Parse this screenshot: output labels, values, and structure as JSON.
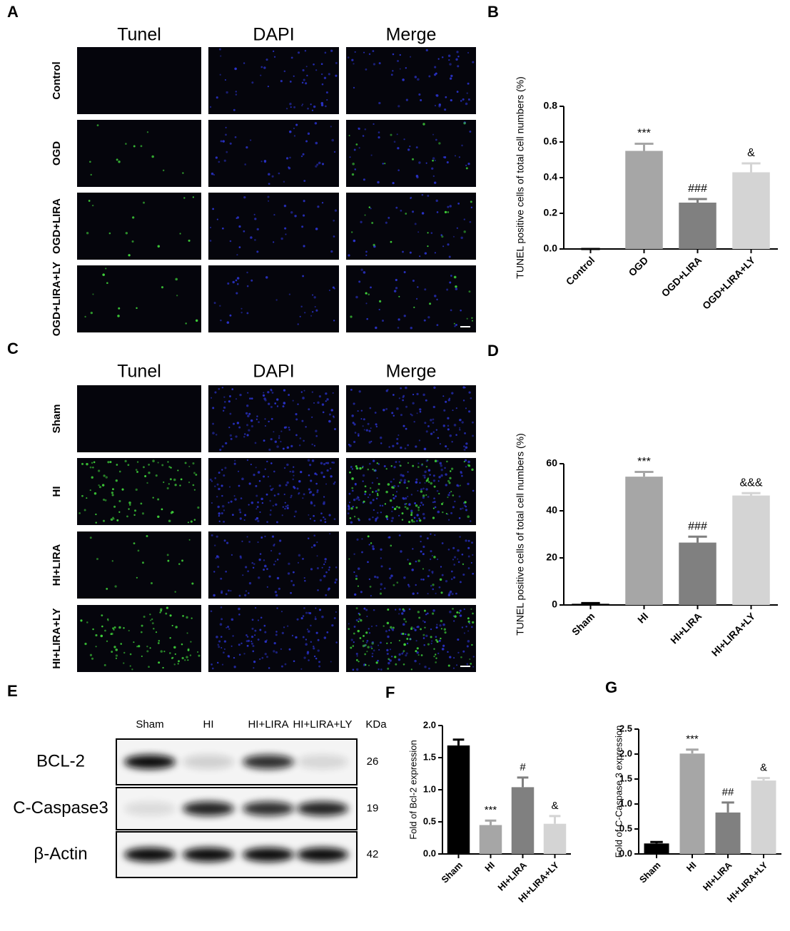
{
  "micrographs": [
    {
      "panel": "A",
      "columns": [
        "Tunel",
        "DAPI",
        "Merge"
      ],
      "rows": [
        "Control",
        "OGD",
        "OGD+LIRA",
        "OGD+LIRA+LY"
      ]
    },
    {
      "panel": "C",
      "columns": [
        "Tunel",
        "DAPI",
        "Merge"
      ],
      "rows": [
        "Sham",
        "HI",
        "HI+LIRA",
        "HI+LIRA+LY"
      ]
    }
  ],
  "western_blot": {
    "panel": "E",
    "lanes": [
      "Sham",
      "HI",
      "HI+LIRA",
      "HI+LIRA+LY"
    ],
    "unit": "KDa",
    "bands": [
      {
        "name": "BCL-2",
        "size": "26"
      },
      {
        "name": "C-Caspase3",
        "size": "19"
      },
      {
        "name": "β-Actin",
        "size": "42"
      }
    ]
  },
  "chart_data": [
    {
      "type": "bar",
      "panel": "B",
      "y_label": "TUNEL positive cells of total cell numbers (%)",
      "categories": [
        "Control",
        "OGD",
        "OGD+LIRA",
        "OGD+LIRA+LY"
      ],
      "values": [
        0,
        0.55,
        0.26,
        0.43
      ],
      "errors": [
        0,
        0.04,
        0.02,
        0.05
      ],
      "annotations": [
        null,
        "***",
        "###",
        "&"
      ],
      "colors": [
        "#000000",
        "#a6a6a6",
        "#808080",
        "#d4d4d4"
      ],
      "ylim": [
        0,
        0.8
      ],
      "yticks": [
        {
          "value": 0,
          "label": "0.0"
        },
        0.2,
        0.4,
        0.6,
        0.8
      ]
    },
    {
      "type": "bar",
      "panel": "D",
      "y_label": "TUNEL positive cells of total cell numbers (%)",
      "categories": [
        "Sham",
        "HI",
        "HI+LIRA",
        "HI+LIRA+LY"
      ],
      "values": [
        0.5,
        54.5,
        26.5,
        46.5
      ],
      "errors": [
        0.3,
        2,
        2.5,
        1
      ],
      "annotations": [
        null,
        "***",
        "###",
        "&&&"
      ],
      "colors": [
        "#000000",
        "#a6a6a6",
        "#808080",
        "#d4d4d4"
      ],
      "ylim": [
        0,
        60
      ],
      "yticks": [
        0,
        20,
        40,
        60
      ]
    },
    {
      "type": "bar",
      "panel": "F",
      "y_label": "Fold of Bcl-2 expression",
      "categories": [
        "Sham",
        "HI",
        "HI+LIRA",
        "HI+LIRA+LY"
      ],
      "values": [
        1.69,
        0.45,
        1.04,
        0.47
      ],
      "errors": [
        0.09,
        0.07,
        0.15,
        0.12
      ],
      "annotations": [
        null,
        "***",
        "#",
        "&"
      ],
      "colors": [
        "#000000",
        "#a6a6a6",
        "#808080",
        "#d4d4d4"
      ],
      "ylim": [
        0,
        2
      ],
      "yticks": [
        {
          "value": 0,
          "label": "0.0"
        },
        0.5,
        {
          "value": 1,
          "label": "1.0"
        },
        1.5,
        {
          "value": 2,
          "label": "2.0"
        }
      ]
    },
    {
      "type": "bar",
      "panel": "G",
      "y_label": "Fold of C-Caspase 3 expression",
      "categories": [
        "Sham",
        "HI",
        "HI+LIRA",
        "HI+LIRA+LY"
      ],
      "values": [
        0.21,
        2.01,
        0.83,
        1.47
      ],
      "errors": [
        0.03,
        0.08,
        0.2,
        0.05
      ],
      "annotations": [
        null,
        "***",
        "##",
        "&"
      ],
      "colors": [
        "#000000",
        "#a6a6a6",
        "#808080",
        "#d4d4d4"
      ],
      "ylim": [
        0,
        2.5
      ],
      "yticks": [
        {
          "value": 0,
          "label": "0.0"
        },
        0.5,
        {
          "value": 1,
          "label": "1.0"
        },
        1.5,
        {
          "value": 2,
          "label": "2.0"
        },
        2.5
      ]
    }
  ]
}
